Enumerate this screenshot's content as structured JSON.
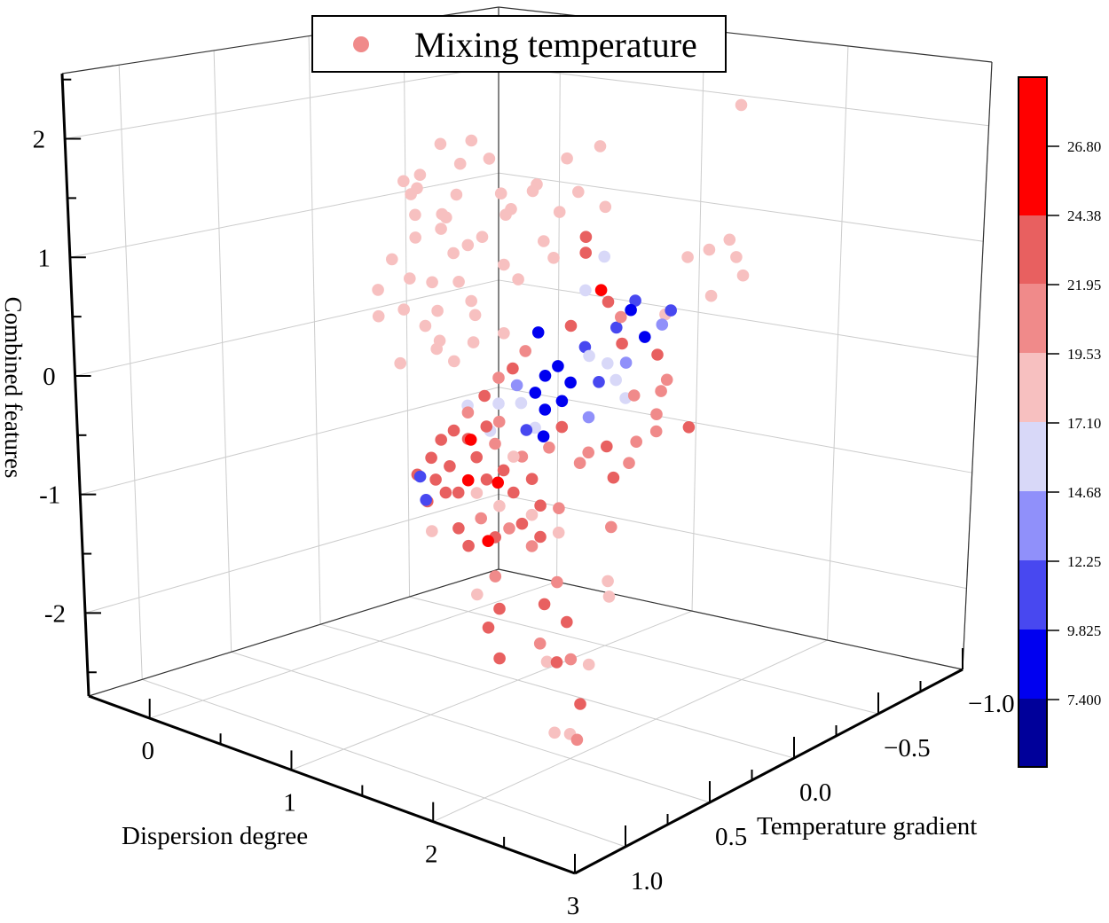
{
  "chart_data": {
    "type": "scatter",
    "projection": "3d",
    "xlabel": "Dispersion degree",
    "ylabel": "Temperature gradient",
    "zlabel": "Combined features",
    "legend": {
      "label": "Mixing temperature",
      "placement": "top-center",
      "marker_color": "#f08a8a"
    },
    "xlim": [
      -0.43,
      3.0
    ],
    "ylim": [
      -1.0,
      1.3
    ],
    "zlim": [
      -2.7,
      2.55
    ],
    "x_ticks": [
      "0",
      "1",
      "2",
      "3"
    ],
    "y_ticks": [
      "−1.0",
      "−0.5",
      "0.0",
      "0.5",
      "1.0"
    ],
    "z_ticks": [
      "-2",
      "-1",
      "0",
      "1",
      "2"
    ],
    "grid": true,
    "colorbar": {
      "placement": "right",
      "tick_labels": [
        "26.80",
        "24.38",
        "21.95",
        "19.53",
        "17.10",
        "14.68",
        "12.25",
        "9.825",
        "7.400"
      ],
      "band_colors": [
        "#ff0000",
        "#e86060",
        "#f08a8a",
        "#f7c0c0",
        "#d8d8f8",
        "#9090fa",
        "#4848f0",
        "#0000f0",
        "#00009a"
      ]
    },
    "points_format": [
      "dispersion_degree",
      "temperature_gradient",
      "combined_features",
      "mixing_temperature"
    ],
    "points": [
      [
        0.3,
        0,
        1.4,
        18.2
      ],
      [
        0.45,
        0.1,
        1.6,
        18.0
      ],
      [
        0.6,
        0,
        1.7,
        18.5
      ],
      [
        0.7,
        0.1,
        1.5,
        17.9
      ],
      [
        0.5,
        0,
        1.2,
        18.3
      ],
      [
        0.35,
        0.05,
        1.0,
        18.1
      ],
      [
        0.55,
        0,
        0.9,
        17.8
      ],
      [
        0.75,
        0,
        1.1,
        18.6
      ],
      [
        0.85,
        -0.05,
        1.3,
        18.4
      ],
      [
        0.9,
        0,
        0.9,
        18.0
      ],
      [
        0.65,
        0.05,
        0.7,
        18.7
      ],
      [
        0.4,
        0,
        0.6,
        18.2
      ],
      [
        0.25,
        0.1,
        0.8,
        17.6
      ],
      [
        0.2,
        0,
        0.3,
        18.0
      ],
      [
        0.35,
        0,
        0.2,
        18.4
      ],
      [
        0.5,
        0.05,
        0.4,
        18.1
      ],
      [
        0.7,
        0,
        0.4,
        18.9
      ],
      [
        0.8,
        0.1,
        0.6,
        18.3
      ],
      [
        1.0,
        0,
        0.8,
        18.0
      ],
      [
        1.05,
        -0.1,
        1.1,
        17.5
      ],
      [
        0.95,
        0,
        1.4,
        18.8
      ],
      [
        0.6,
        0.1,
        1.3,
        18.2
      ],
      [
        0.45,
        0,
        0.1,
        18.5
      ],
      [
        0.3,
        0.1,
        -0.1,
        18.0
      ],
      [
        0.55,
        0,
        -0.05,
        17.9
      ],
      [
        0.15,
        0.1,
        0.5,
        18.6
      ],
      [
        0.75,
        0.05,
        0.2,
        18.1
      ],
      [
        0.9,
        0,
        0.3,
        18.3
      ],
      [
        0.4,
        -0.05,
        1.8,
        17.7
      ],
      [
        0.55,
        -0.1,
        1.85,
        18.0
      ],
      [
        0.65,
        0,
        1.0,
        18.4
      ],
      [
        0.35,
        0.05,
        1.2,
        18.9
      ],
      [
        1.1,
        0,
        1.6,
        18.2
      ],
      [
        0.8,
        0,
        1.8,
        17.6
      ],
      [
        0.45,
        0.15,
        1.45,
        18.1
      ],
      [
        0.5,
        0.2,
        0.75,
        18.3
      ],
      [
        0.28,
        0.2,
        0.35,
        17.8
      ],
      [
        0.62,
        0.15,
        0.15,
        18.6
      ],
      [
        0.72,
        0.2,
        1.25,
        18.0
      ],
      [
        0.4,
        0.15,
        1.55,
        18.4
      ],
      [
        1.9,
        -0.5,
        2.29,
        18.3
      ],
      [
        0.93,
        -0.5,
        1.72,
        18.0
      ],
      [
        0.7,
        -0.5,
        1.56,
        18.4
      ],
      [
        0.49,
        -0.5,
        1.28,
        18.1
      ],
      [
        0.78,
        -0.5,
        1.28,
        18.7
      ],
      [
        0.97,
        -0.5,
        1.19,
        18.2
      ],
      [
        1.55,
        -0.5,
        0.88,
        18.0
      ],
      [
        1.7,
        -0.5,
        0.98,
        18.5
      ],
      [
        1.84,
        -0.5,
        1.1,
        18.3
      ],
      [
        1.89,
        -0.5,
        0.96,
        17.9
      ],
      [
        1.94,
        -0.5,
        0.81,
        18.2
      ],
      [
        1.72,
        -0.5,
        0.58,
        18.6
      ],
      [
        0.65,
        -0.5,
        1.07,
        18.0
      ],
      [
        0.24,
        -0.5,
        1.14,
        18.4
      ],
      [
        0.61,
        -0.5,
        0.65,
        18.1
      ],
      [
        1.4,
        -0.5,
        0.34,
        18.8
      ],
      [
        0.76,
        -0.3,
        0.12,
        9.2
      ],
      [
        0.81,
        -0.3,
        -0.25,
        9.5
      ],
      [
        0.9,
        -0.3,
        -0.14,
        8.8
      ],
      [
        0.99,
        -0.3,
        -0.26,
        9.6
      ],
      [
        1.09,
        -0.3,
        0.08,
        11.0
      ],
      [
        0.74,
        -0.3,
        -0.42,
        9.1
      ],
      [
        0.81,
        -0.3,
        -0.55,
        8.9
      ],
      [
        0.93,
        -0.3,
        -0.44,
        9.4
      ],
      [
        1.19,
        -0.3,
        -0.2,
        11.5
      ],
      [
        1.31,
        -0.3,
        0.31,
        11.2
      ],
      [
        1.44,
        -0.3,
        0.58,
        11.8
      ],
      [
        1.41,
        -0.3,
        0.49,
        9.7
      ],
      [
        1.38,
        -0.3,
        0.02,
        12.8
      ],
      [
        1.51,
        -0.3,
        0.28,
        9.3
      ],
      [
        1.69,
        -0.3,
        0.56,
        11.4
      ],
      [
        0.8,
        -0.3,
        -0.79,
        9.0
      ],
      [
        0.61,
        -0.3,
        -0.39,
        13.5
      ],
      [
        1.12,
        -0.3,
        -0.53,
        13.2
      ],
      [
        1.25,
        -0.3,
        -0.02,
        15.8
      ],
      [
        1.12,
        -0.3,
        0.01,
        16.2
      ],
      [
        1.31,
        -0.3,
        -0.15,
        15.5
      ],
      [
        1.38,
        -0.3,
        -0.29,
        16.0
      ],
      [
        0.64,
        -0.3,
        -0.54,
        15.9
      ],
      [
        0.48,
        -0.3,
        -0.59,
        16.3
      ],
      [
        0.42,
        -0.3,
        -0.85,
        15.7
      ],
      [
        0.26,
        -0.3,
        -0.67,
        16.1
      ],
      [
        1.09,
        -0.3,
        0.58,
        15.6
      ],
      [
        1.22,
        -0.3,
        0.91,
        16.4
      ],
      [
        1.63,
        -0.3,
        0.42,
        13.8
      ],
      [
        0.74,
        -0.3,
        -0.73,
        16.0
      ],
      [
        1.09,
        -0.3,
        1.05,
        23.0
      ],
      [
        1.09,
        -0.3,
        0.91,
        22.5
      ],
      [
        1.2,
        -0.3,
        0.61,
        26.0
      ],
      [
        1.25,
        -0.3,
        0.52,
        22.8
      ],
      [
        1.34,
        -0.3,
        0.41,
        21.0
      ],
      [
        0.99,
        -0.3,
        0.24,
        22.0
      ],
      [
        1.35,
        -0.3,
        0.18,
        23.0
      ],
      [
        1.6,
        -0.3,
        0.15,
        22.5
      ],
      [
        1.67,
        -0.3,
        -0.05,
        20.5
      ],
      [
        1.63,
        -0.3,
        -0.16,
        21.0
      ],
      [
        1.44,
        -0.3,
        -0.25,
        19.8
      ],
      [
        1.83,
        -0.3,
        -0.42,
        23.0
      ],
      [
        1.6,
        -0.3,
        -0.52,
        21.5
      ],
      [
        1.46,
        -0.3,
        -0.65,
        20.5
      ],
      [
        1.25,
        -0.3,
        -0.75,
        23.5
      ],
      [
        1.12,
        -0.3,
        -0.84,
        20.0
      ],
      [
        0.93,
        -0.3,
        -0.67,
        22.0
      ],
      [
        1.06,
        -0.3,
        -0.95,
        21.0
      ],
      [
        1.3,
        -0.3,
        -1.01,
        23.0
      ],
      [
        0.58,
        -0.3,
        -0.25,
        22.5
      ],
      [
        0.38,
        -0.3,
        -0.55,
        23.0
      ],
      [
        0.67,
        -0.3,
        -0.07,
        21.5
      ],
      [
        0.48,
        -0.3,
        -0.36,
        19.8
      ],
      [
        1.6,
        -0.3,
        -0.37,
        19.6
      ],
      [
        1.41,
        -0.3,
        -0.85,
        20.0
      ],
      [
        0.54,
        0.2,
        -0.95,
        23.0
      ],
      [
        0.64,
        0.2,
        -0.77,
        22.6
      ],
      [
        0.71,
        0.2,
        -0.59,
        23.4
      ],
      [
        0.77,
        0.2,
        -0.8,
        22.2
      ],
      [
        0.83,
        0.2,
        -1.01,
        23.8
      ],
      [
        0.9,
        0.2,
        -0.52,
        22.9
      ],
      [
        0.96,
        0.2,
        -0.66,
        23.1
      ],
      [
        1.03,
        0.2,
        -0.83,
        22.4
      ],
      [
        1.09,
        0.2,
        -0.5,
        21.2
      ],
      [
        1.15,
        0.2,
        -0.71,
        23.6
      ],
      [
        1.22,
        0.2,
        -0.88,
        22.8
      ],
      [
        1.28,
        0.2,
        -0.55,
        21.0
      ],
      [
        1.35,
        0.2,
        -0.72,
        23.2
      ],
      [
        1.41,
        0.2,
        -0.93,
        22.1
      ],
      [
        0.83,
        0.2,
        -1.32,
        23.5
      ],
      [
        0.9,
        0.2,
        -1.45,
        22.7
      ],
      [
        0.99,
        0.2,
        -1.18,
        20.8
      ],
      [
        1.09,
        0.2,
        -1.31,
        23.0
      ],
      [
        1.19,
        0.2,
        -1.2,
        21.4
      ],
      [
        1.28,
        0.2,
        -1.13,
        22.6
      ],
      [
        1.35,
        0.2,
        -1.3,
        20.2
      ],
      [
        1.41,
        0.2,
        -1.2,
        23.3
      ],
      [
        0.74,
        0.2,
        -1.04,
        22.3
      ],
      [
        0.67,
        0.2,
        -0.95,
        23.7
      ],
      [
        0.61,
        0.2,
        -1.16,
        22.0
      ],
      [
        0.9,
        0.2,
        -0.29,
        21.6
      ],
      [
        1.03,
        0.2,
        -0.37,
        22.9
      ],
      [
        1.12,
        0.2,
        -0.3,
        20.6
      ],
      [
        1.47,
        0.2,
        -0.41,
        21.8
      ],
      [
        0.8,
        0.2,
        -0.48,
        23.1
      ],
      [
        0.92,
        0.2,
        -0.52,
        26.2
      ],
      [
        0.9,
        0.2,
        -0.88,
        25.8
      ],
      [
        1.11,
        0.2,
        -0.83,
        26.5
      ],
      [
        1.04,
        0.2,
        -1.36,
        25.5
      ],
      [
        1.22,
        0.2,
        -0.57,
        18.4
      ],
      [
        1.12,
        0.2,
        -1.03,
        18.9
      ],
      [
        0.96,
        0.2,
        -0.97,
        18.2
      ],
      [
        0.64,
        0.2,
        -1.41,
        18.7
      ],
      [
        1.35,
        0.2,
        -1.03,
        19.0
      ],
      [
        0.56,
        0.2,
        -0.96,
        11.0
      ],
      [
        0.6,
        0.2,
        -1.15,
        12.0
      ],
      [
        1.31,
        0.2,
        -0.31,
        10.2
      ],
      [
        1.09,
        0.2,
        -1.65,
        21.0
      ],
      [
        1.12,
        0.2,
        -1.92,
        22.0
      ],
      [
        1.04,
        0.2,
        -2.11,
        23.0
      ],
      [
        0.96,
        0.2,
        -1.85,
        19.0
      ],
      [
        1.44,
        0.2,
        -1.77,
        23.5
      ],
      [
        1.53,
        0.2,
        -1.55,
        20.0
      ],
      [
        1.6,
        0.2,
        -1.87,
        22.0
      ],
      [
        1.41,
        0.2,
        -2.12,
        20.5
      ],
      [
        1.46,
        0.2,
        -2.26,
        19.0
      ],
      [
        1.53,
        0.2,
        -2.24,
        22.5
      ],
      [
        1.63,
        0.2,
        -2.18,
        21.0
      ],
      [
        1.76,
        0.2,
        -2.18,
        19.5
      ],
      [
        1.7,
        0.2,
        -2.54,
        22.0
      ],
      [
        2.01,
        0.6,
        -2.41,
        18.6
      ],
      [
        2.12,
        0.6,
        -2.38,
        18.2
      ],
      [
        2.17,
        0.6,
        -2.41,
        21.2
      ],
      [
        1.12,
        0.2,
        -2.35,
        22.0
      ],
      [
        1.89,
        0.2,
        -1.42,
        19.0
      ],
      [
        1.9,
        0.2,
        -1.55,
        18.5
      ],
      [
        1.91,
        0.2,
        -0.95,
        21.0
      ],
      [
        1.54,
        0.2,
        -0.91,
        21.5
      ],
      [
        1.54,
        0.2,
        -1.12,
        19.0
      ]
    ]
  }
}
